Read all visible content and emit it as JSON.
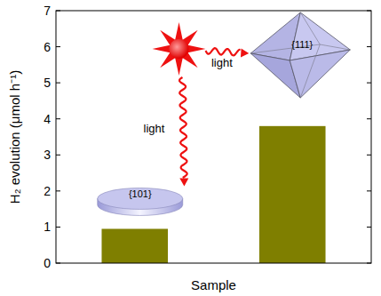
{
  "chart_data": {
    "type": "bar",
    "categories": [
      null,
      null
    ],
    "values": [
      0.95,
      3.8
    ],
    "color": "#7f7f00",
    "ylim": [
      0,
      7
    ],
    "yticks": [
      0,
      1,
      2,
      3,
      4,
      5,
      6,
      7
    ],
    "y_label": "H₂ evolution (μmol h⁻¹)",
    "x_label": "Sample",
    "annotations": [
      "light",
      "light",
      "{101}",
      "{111}"
    ],
    "grid": false
  }
}
